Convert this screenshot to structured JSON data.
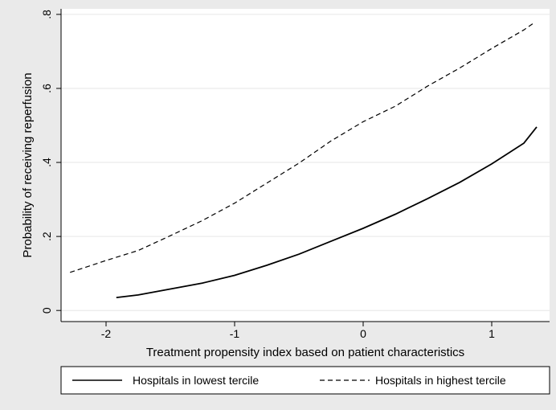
{
  "chart_data": {
    "type": "line",
    "title": "",
    "xlabel": "Treatment propensity index based on patient characteristics",
    "ylabel": "Probability of receiving reperfusion",
    "xlim": [
      -2.35,
      1.45
    ],
    "ylim": [
      -0.03,
      0.815
    ],
    "x_ticks": [
      -2,
      -1,
      0,
      1
    ],
    "x_tick_labels": [
      "-2",
      "-1",
      "0",
      "1"
    ],
    "y_ticks": [
      0,
      0.2,
      0.4,
      0.6,
      0.8
    ],
    "y_tick_labels": [
      "0",
      ".2",
      ".4",
      ".6",
      ".8"
    ],
    "grid": "horizontal",
    "legend_position": "bottom",
    "background_color": "#eaeaea",
    "plot_background_color": "#ffffff",
    "grid_color": "#e6e6e6",
    "series": [
      {
        "name": "Hospitals in lowest tercile",
        "style": "solid",
        "color": "#000000",
        "x": [
          -1.92,
          -1.75,
          -1.5,
          -1.25,
          -1.0,
          -0.75,
          -0.5,
          -0.25,
          0.0,
          0.25,
          0.5,
          0.75,
          1.0,
          1.25,
          1.35
        ],
        "y": [
          0.035,
          0.042,
          0.058,
          0.074,
          0.095,
          0.122,
          0.152,
          0.187,
          0.222,
          0.26,
          0.302,
          0.346,
          0.396,
          0.452,
          0.496
        ]
      },
      {
        "name": "Hospitals in highest tercile",
        "style": "dashed",
        "color": "#000000",
        "x": [
          -2.28,
          -2.0,
          -1.75,
          -1.5,
          -1.25,
          -1.0,
          -0.75,
          -0.5,
          -0.25,
          0.0,
          0.25,
          0.5,
          0.75,
          1.0,
          1.25,
          1.32
        ],
        "y": [
          0.103,
          0.135,
          0.162,
          0.202,
          0.243,
          0.29,
          0.344,
          0.398,
          0.458,
          0.51,
          0.552,
          0.606,
          0.655,
          0.708,
          0.758,
          0.775
        ]
      }
    ]
  }
}
